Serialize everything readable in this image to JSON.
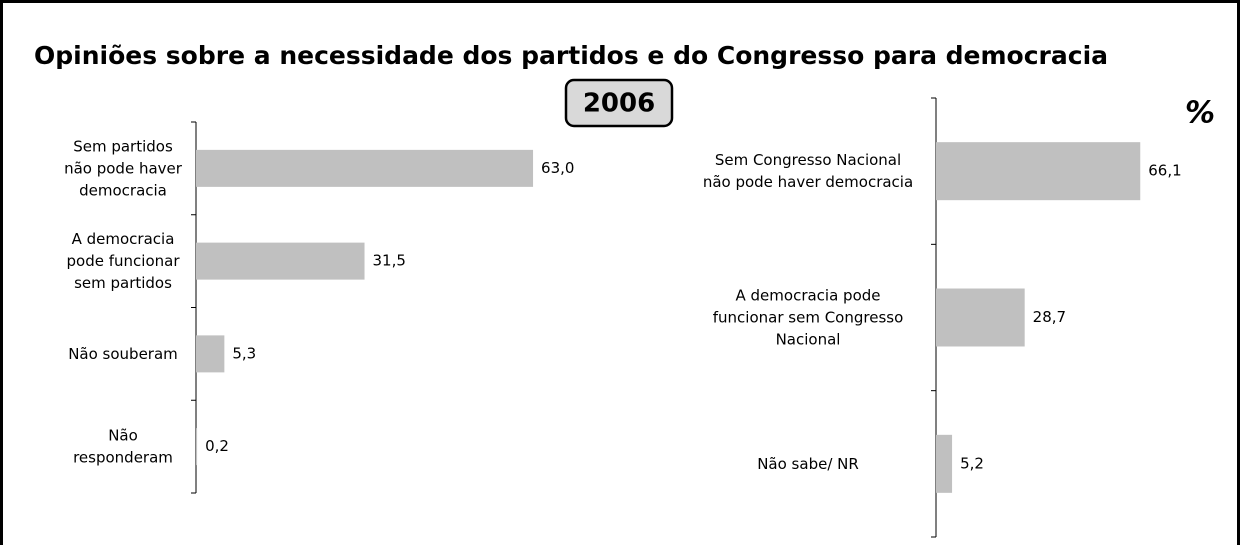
{
  "title": "Opiniões sobre a necessidade dos partidos e do Congresso para democracia",
  "badge": "2006",
  "unit": "%",
  "chart_data": [
    {
      "type": "barh",
      "color": "#c0c0c0",
      "categories": [
        "Sem partidos não pode haver democracia",
        "A democracia pode funcionar sem partidos",
        "Não souberam",
        "Não responderam"
      ],
      "values": [
        63.0,
        31.5,
        5.3,
        0.2
      ],
      "value_labels": [
        "63,0",
        "31,5",
        "5,3",
        "0,2"
      ]
    },
    {
      "type": "barh",
      "color": "#c0c0c0",
      "categories": [
        "Sem Congresso Nacional não pode haver democracia",
        "A democracia pode funcionar sem Congresso Nacional",
        "Não sabe/ NR"
      ],
      "values": [
        66.1,
        28.7,
        5.2
      ],
      "value_labels": [
        "66,1",
        "28,7",
        "5,2"
      ]
    }
  ]
}
